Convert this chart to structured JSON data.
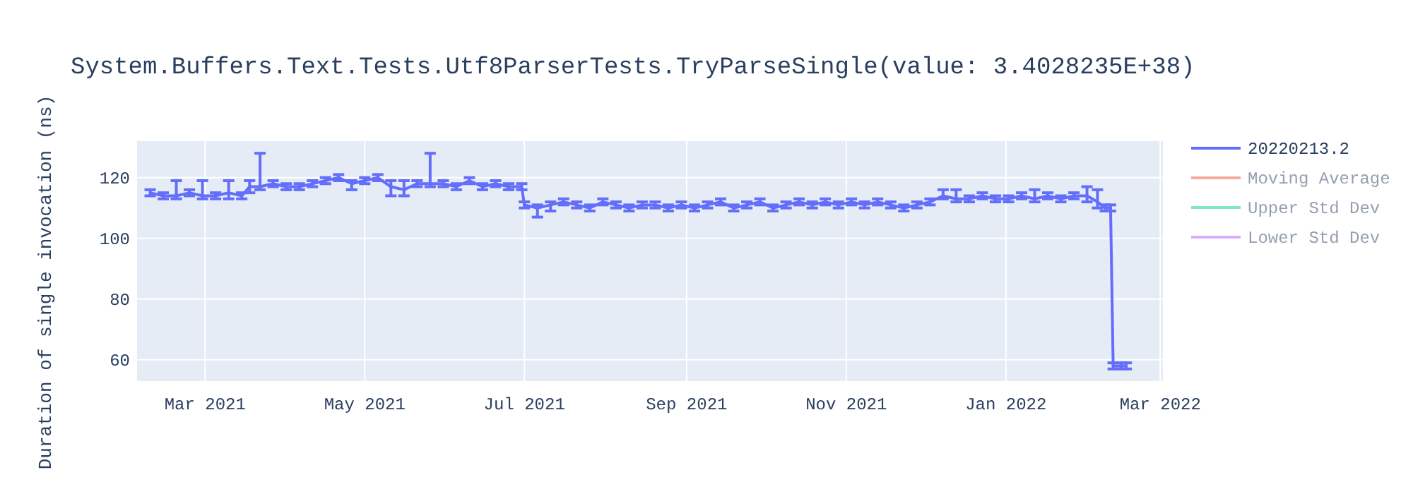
{
  "chart_data": {
    "type": "line",
    "title": "System.Buffers.Text.Tests.Utf8ParserTests.TryParseSingle(value: 3.4028235E+38)",
    "ylabel": "Duration of single invocation (ns)",
    "xlim": [
      "2021-02-03",
      "2022-03-02"
    ],
    "xticks": [
      {
        "value": "2021-03-01",
        "label": "Mar 2021"
      },
      {
        "value": "2021-05-01",
        "label": "May 2021"
      },
      {
        "value": "2021-07-01",
        "label": "Jul 2021"
      },
      {
        "value": "2021-09-01",
        "label": "Sep 2021"
      },
      {
        "value": "2021-11-01",
        "label": "Nov 2021"
      },
      {
        "value": "2022-01-01",
        "label": "Jan 2022"
      },
      {
        "value": "2022-03-01",
        "label": "Mar 2022"
      }
    ],
    "ylim": [
      53,
      132
    ],
    "yticks": [
      60,
      80,
      100,
      120
    ],
    "grid": true,
    "legend": "top right",
    "marker": "none",
    "line_style": "solid",
    "series": [
      {
        "name": "20220213.2",
        "color": "#636efa",
        "x": [
          "2021-02-08",
          "2021-02-13",
          "2021-02-18",
          "2021-02-23",
          "2021-02-28",
          "2021-03-05",
          "2021-03-10",
          "2021-03-15",
          "2021-03-18",
          "2021-03-22",
          "2021-03-27",
          "2021-04-01",
          "2021-04-06",
          "2021-04-11",
          "2021-04-16",
          "2021-04-21",
          "2021-04-26",
          "2021-05-01",
          "2021-05-06",
          "2021-05-11",
          "2021-05-16",
          "2021-05-21",
          "2021-05-26",
          "2021-05-31",
          "2021-06-05",
          "2021-06-10",
          "2021-06-15",
          "2021-06-20",
          "2021-06-25",
          "2021-06-30",
          "2021-07-01",
          "2021-07-06",
          "2021-07-11",
          "2021-07-16",
          "2021-07-21",
          "2021-07-26",
          "2021-07-31",
          "2021-08-05",
          "2021-08-10",
          "2021-08-15",
          "2021-08-20",
          "2021-08-25",
          "2021-08-30",
          "2021-09-04",
          "2021-09-09",
          "2021-09-14",
          "2021-09-19",
          "2021-09-24",
          "2021-09-29",
          "2021-10-04",
          "2021-10-09",
          "2021-10-14",
          "2021-10-19",
          "2021-10-24",
          "2021-10-29",
          "2021-11-03",
          "2021-11-08",
          "2021-11-13",
          "2021-11-18",
          "2021-11-23",
          "2021-11-28",
          "2021-12-03",
          "2021-12-08",
          "2021-12-13",
          "2021-12-18",
          "2021-12-23",
          "2021-12-28",
          "2022-01-02",
          "2022-01-07",
          "2022-01-12",
          "2022-01-17",
          "2022-01-22",
          "2022-01-27",
          "2022-02-01",
          "2022-02-05",
          "2022-02-08",
          "2022-02-10",
          "2022-02-11",
          "2022-02-14",
          "2022-02-16"
        ],
        "values": [
          115,
          114,
          114,
          115,
          114,
          114,
          115,
          114,
          117,
          117,
          118,
          117,
          117,
          118,
          119,
          120,
          118,
          119,
          120,
          117,
          116,
          118,
          118,
          118,
          117,
          119,
          117,
          118,
          117,
          117,
          111,
          110,
          111,
          112,
          111,
          110,
          112,
          111,
          110,
          111,
          111,
          110,
          111,
          110,
          111,
          112,
          110,
          111,
          112,
          110,
          111,
          112,
          111,
          112,
          111,
          112,
          111,
          112,
          111,
          110,
          111,
          112,
          114,
          113,
          113,
          114,
          113,
          113,
          114,
          113,
          114,
          113,
          114,
          114,
          112,
          110,
          110,
          58,
          58,
          58
        ],
        "errors": [
          1,
          1,
          [
            113,
            119
          ],
          1,
          [
            113,
            119
          ],
          1,
          [
            113,
            119
          ],
          1,
          [
            115,
            119
          ],
          [
            116,
            128
          ],
          1,
          1,
          1,
          1,
          1,
          1,
          [
            116,
            119
          ],
          1,
          1,
          [
            114,
            119
          ],
          [
            114,
            119
          ],
          1,
          [
            117,
            128
          ],
          1,
          1,
          1,
          1,
          1,
          1,
          1,
          1,
          [
            107,
            111
          ],
          [
            109,
            112
          ],
          1,
          1,
          1,
          1,
          1,
          1,
          1,
          1,
          1,
          1,
          1,
          1,
          1,
          1,
          1,
          1,
          1,
          1,
          1,
          1,
          1,
          1,
          1,
          1,
          1,
          1,
          1,
          1,
          1,
          [
            113,
            116
          ],
          [
            112,
            116
          ],
          1,
          1,
          1,
          1,
          1,
          [
            112,
            116
          ],
          1,
          1,
          1,
          [
            112,
            117
          ],
          [
            110,
            116
          ],
          1,
          1,
          1,
          1,
          1
        ]
      },
      {
        "name": "Moving Average",
        "color": "#ef553b"
      },
      {
        "name": "Upper Std Dev",
        "color": "#00cc96"
      },
      {
        "name": "Lower Std Dev",
        "color": "#ab63fa"
      }
    ]
  }
}
